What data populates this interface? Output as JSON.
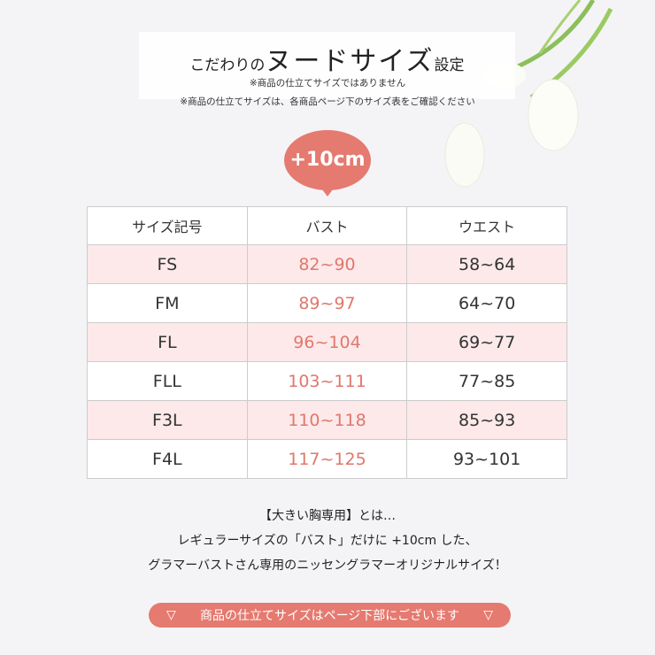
{
  "header": {
    "title_prefix": "こだわりの",
    "title_main": "ヌードサイズ",
    "title_suffix": "設定",
    "note1": "※商品の仕立てサイズではありません",
    "note2": "※商品の仕立てサイズは、各商品ページ下のサイズ表をご確認ください"
  },
  "badge": "+10cm",
  "table": {
    "headers": [
      "サイズ記号",
      "バスト",
      "ウエスト"
    ],
    "rows": [
      [
        "FS",
        "82~90",
        "58~64"
      ],
      [
        "FM",
        "89~97",
        "64~70"
      ],
      [
        "FL",
        "96~104",
        "69~77"
      ],
      [
        "FLL",
        "103~111",
        "77~85"
      ],
      [
        "F3L",
        "110~118",
        "85~93"
      ],
      [
        "F4L",
        "117~125",
        "93~101"
      ]
    ]
  },
  "description": [
    "【大きい胸専用】とは…",
    "レギュラーサイズの「バスト」だけに +10cm した、",
    "グラマーバストさん専用のニッセングラマーオリジナルサイズ！"
  ],
  "button": {
    "label": "商品の仕立てサイズはページ下部にございます",
    "arrow": "▽"
  },
  "colors": {
    "accent": "#e57a70",
    "pink_row": "#fde9ea"
  }
}
